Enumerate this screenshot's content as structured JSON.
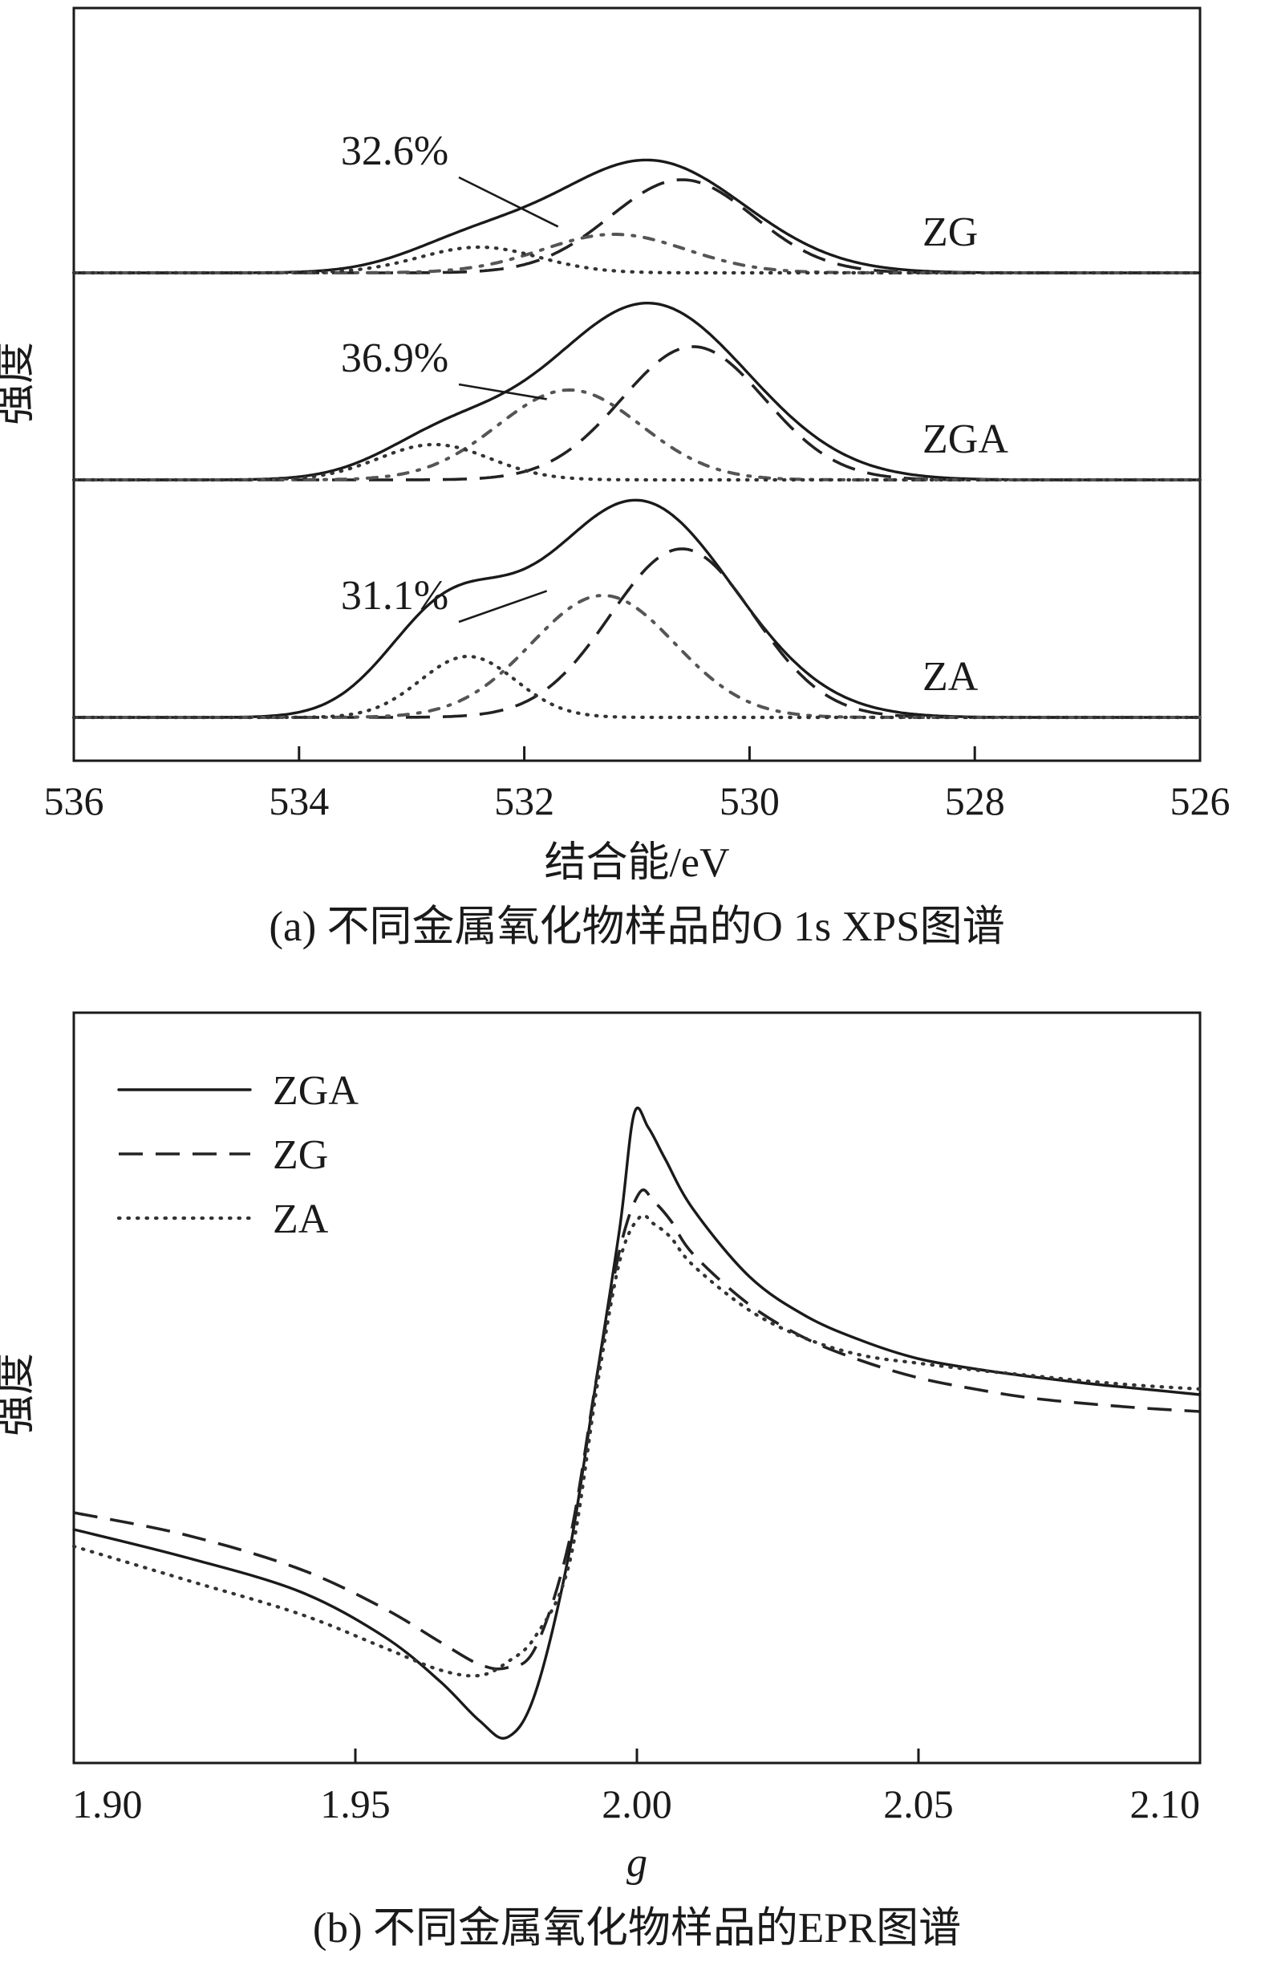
{
  "chart_data": [
    {
      "panel": "a",
      "type": "line",
      "caption": "(a) 不同金属氧化物样品的O 1s XPS图谱",
      "xlabel": "结合能/eV",
      "ylabel": "强度",
      "xlim": [
        536,
        526
      ],
      "x_reversed": true,
      "xticks": [
        536,
        534,
        532,
        530,
        528,
        526
      ],
      "tick_labels": [
        "536",
        "534",
        "532",
        "530",
        "528",
        "526"
      ],
      "series": [
        {
          "name": "ZG",
          "baseline": 0,
          "components": [
            {
              "role": "envelope",
              "center": 530.9,
              "height": 7.0,
              "width": 1.2,
              "shoulder": {
                "center": 532.5,
                "height": 1.6,
                "width": 0.8
              }
            },
            {
              "role": "lattice",
              "center": 530.6,
              "height": 5.8,
              "width": 0.9
            },
            {
              "role": "vacancy",
              "center": 531.2,
              "height": 2.4,
              "width": 0.9
            },
            {
              "role": "adsorbed",
              "center": 532.4,
              "height": 1.6,
              "width": 0.75
            }
          ],
          "annotation": {
            "text": "32.6%",
            "x": 531.7
          }
        },
        {
          "name": "ZGA",
          "baseline": 0,
          "components": [
            {
              "role": "envelope",
              "center": 530.9,
              "height": 11.0,
              "width": 1.25,
              "shoulder": {
                "center": 532.7,
                "height": 2.4,
                "width": 0.8
              }
            },
            {
              "role": "lattice",
              "center": 530.5,
              "height": 8.3,
              "width": 0.9
            },
            {
              "role": "vacancy",
              "center": 531.6,
              "height": 5.6,
              "width": 0.9
            },
            {
              "role": "adsorbed",
              "center": 532.8,
              "height": 2.2,
              "width": 0.7
            }
          ],
          "annotation": {
            "text": "36.9%",
            "x": 531.8
          }
        },
        {
          "name": "ZA",
          "baseline": 0,
          "components": [
            {
              "role": "envelope",
              "center": 531.0,
              "height": 13.5,
              "width": 1.2,
              "shoulder": {
                "center": 532.7,
                "height": 6.0,
                "width": 0.75
              }
            },
            {
              "role": "lattice",
              "center": 530.6,
              "height": 10.5,
              "width": 0.9
            },
            {
              "role": "vacancy",
              "center": 531.3,
              "height": 7.6,
              "width": 0.9
            },
            {
              "role": "adsorbed",
              "center": 532.5,
              "height": 3.8,
              "width": 0.6
            }
          ],
          "annotation": {
            "text": "31.1%",
            "x": 531.8
          }
        }
      ]
    },
    {
      "panel": "b",
      "type": "line",
      "caption": "(b) 不同金属氧化物样品的EPR图谱",
      "xlabel": "g",
      "ylabel": "强度",
      "xlim": [
        1.9,
        2.1
      ],
      "xticks": [
        1.9,
        1.95,
        2.0,
        2.05,
        2.1
      ],
      "tick_labels": [
        "1.90",
        "1.95",
        "2.00",
        "2.05",
        "2.10"
      ],
      "legend_position": "top-left",
      "series": [
        {
          "name": "ZGA",
          "style": "solid",
          "x": [
            1.9,
            1.92,
            1.94,
            1.955,
            1.965,
            1.972,
            1.977,
            1.982,
            1.988,
            1.993,
            1.997,
            1.9995,
            2.002,
            2.005,
            2.01,
            2.02,
            2.03,
            2.04,
            2.05,
            2.06,
            2.07,
            2.08,
            2.09,
            2.1
          ],
          "y": [
            -1.1,
            -1.35,
            -1.65,
            -2.05,
            -2.45,
            -2.8,
            -2.95,
            -2.55,
            -1.3,
            0.3,
            1.6,
            2.6,
            2.48,
            2.2,
            1.75,
            1.15,
            0.8,
            0.58,
            0.42,
            0.33,
            0.26,
            0.2,
            0.15,
            0.1
          ]
        },
        {
          "name": "ZG",
          "style": "dashed",
          "x": [
            1.9,
            1.92,
            1.94,
            1.955,
            1.965,
            1.972,
            1.977,
            1.982,
            1.988,
            1.993,
            1.997,
            2.0005,
            2.003,
            2.006,
            2.01,
            2.02,
            2.03,
            2.04,
            2.05,
            2.06,
            2.07,
            2.08,
            2.09,
            2.1
          ],
          "y": [
            -0.95,
            -1.15,
            -1.45,
            -1.8,
            -2.1,
            -2.3,
            -2.33,
            -2.15,
            -1.2,
            0.3,
            1.4,
            1.9,
            1.82,
            1.65,
            1.35,
            0.9,
            0.6,
            0.4,
            0.25,
            0.15,
            0.07,
            0.02,
            -0.02,
            -0.05
          ]
        },
        {
          "name": "ZA",
          "style": "dotted",
          "x": [
            1.9,
            1.92,
            1.94,
            1.955,
            1.965,
            1.972,
            1.977,
            1.982,
            1.988,
            1.993,
            1.997,
            2.0005,
            2.003,
            2.006,
            2.01,
            2.02,
            2.03,
            2.04,
            2.05,
            2.06,
            2.07,
            2.08,
            2.09,
            2.1
          ],
          "y": [
            -1.25,
            -1.55,
            -1.85,
            -2.15,
            -2.35,
            -2.4,
            -2.28,
            -2.05,
            -1.4,
            0.2,
            1.3,
            1.68,
            1.62,
            1.5,
            1.25,
            0.85,
            0.6,
            0.45,
            0.38,
            0.32,
            0.27,
            0.22,
            0.18,
            0.15
          ]
        }
      ]
    }
  ]
}
